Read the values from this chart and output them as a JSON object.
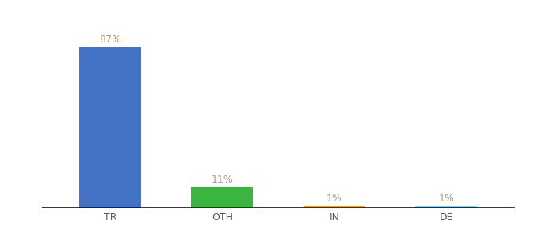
{
  "categories": [
    "TR",
    "OTH",
    "IN",
    "DE"
  ],
  "values": [
    87,
    11,
    1,
    1
  ],
  "bar_colors": [
    "#4472c4",
    "#3cb540",
    "#f0a500",
    "#87ceeb"
  ],
  "labels": [
    "87%",
    "11%",
    "1%",
    "1%"
  ],
  "background_color": "#ffffff",
  "label_color": "#b8986a",
  "label_fontsize": 9,
  "tick_fontsize": 9,
  "ylim": [
    0,
    100
  ],
  "bar_width": 0.55,
  "figsize": [
    6.8,
    3.0
  ],
  "dpi": 100
}
